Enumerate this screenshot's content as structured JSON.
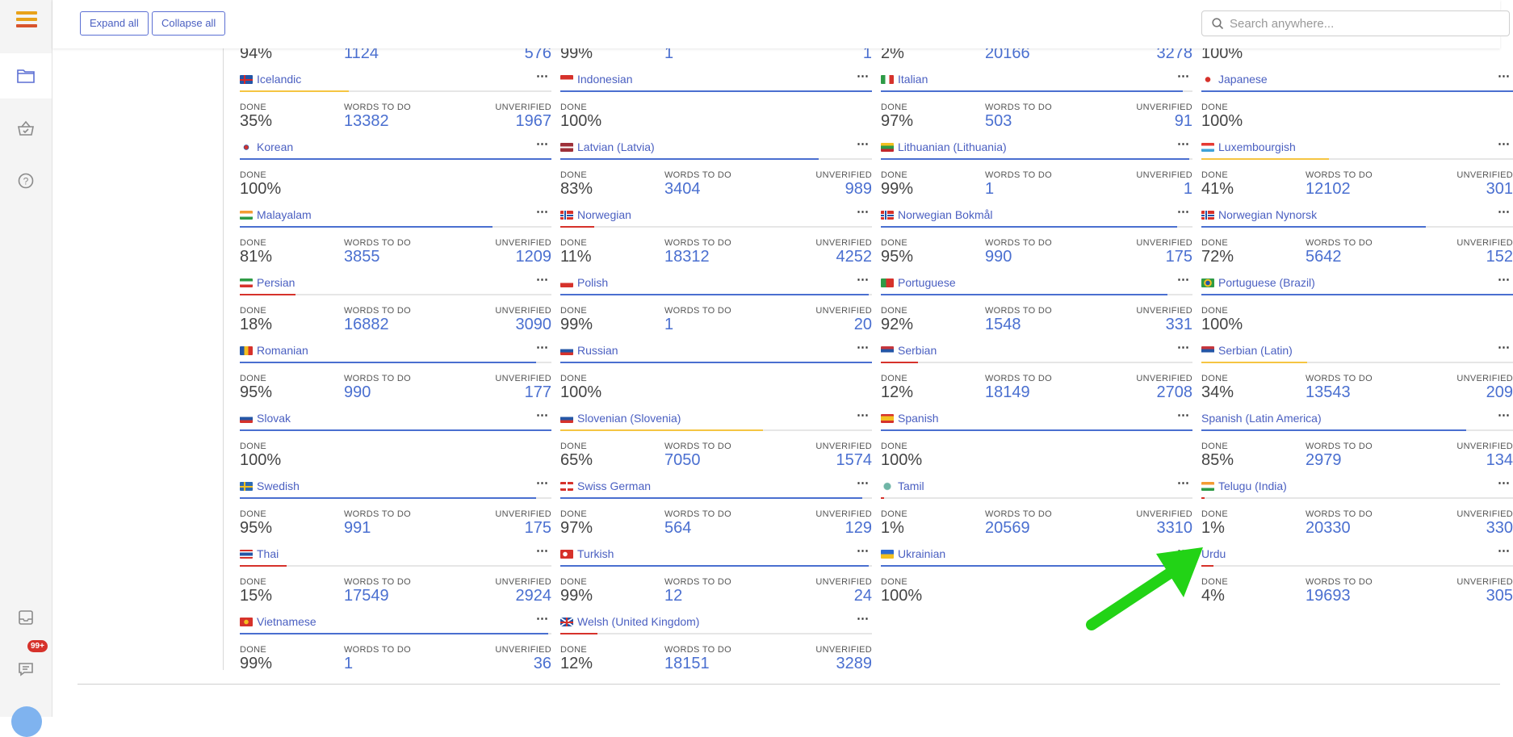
{
  "toolbar": {
    "expand_all": "Expand all",
    "collapse_all": "Collapse all"
  },
  "search": {
    "placeholder": "Search anywhere..."
  },
  "sidebar": {
    "notification_badge": "99+"
  },
  "labels": {
    "done": "DONE",
    "words_to_do": "WORDS TO DO",
    "unverified": "UNVERIFIED"
  },
  "partial_row": [
    {
      "done": "94%",
      "words": "1124",
      "unverified": "576"
    },
    {
      "done": "99%",
      "words": "1",
      "unverified": "1"
    },
    {
      "done": "2%",
      "words": "20166",
      "unverified": "3278"
    },
    {
      "done": "100%",
      "words": "",
      "unverified": ""
    }
  ],
  "languages": [
    {
      "name": "Icelandic",
      "flag": "iceland-flag",
      "done": "35%",
      "words": "13382",
      "unverified": "1967",
      "progress": 0.35,
      "bar": "#f5c542"
    },
    {
      "name": "Indonesian",
      "flag": "indonesia-flag",
      "done": "100%",
      "words": "",
      "unverified": "",
      "progress": 1.0,
      "bar": "#4a6fd0"
    },
    {
      "name": "Italian",
      "flag": "italy-flag",
      "done": "97%",
      "words": "503",
      "unverified": "91",
      "progress": 0.97,
      "bar": "#4a6fd0"
    },
    {
      "name": "Japanese",
      "flag": "japan-flag",
      "done": "100%",
      "words": "",
      "unverified": "",
      "progress": 1.0,
      "bar": "#4a6fd0"
    },
    {
      "name": "Korean",
      "flag": "korea-flag",
      "done": "100%",
      "words": "",
      "unverified": "",
      "progress": 1.0,
      "bar": "#4a6fd0"
    },
    {
      "name": "Latvian (Latvia)",
      "flag": "latvia-flag",
      "done": "83%",
      "words": "3404",
      "unverified": "989",
      "progress": 0.83,
      "bar": "#4a6fd0"
    },
    {
      "name": "Lithuanian (Lithuania)",
      "flag": "lithuania-flag",
      "done": "99%",
      "words": "1",
      "unverified": "1",
      "progress": 0.99,
      "bar": "#4a6fd0"
    },
    {
      "name": "Luxembourgish",
      "flag": "luxembourg-flag",
      "done": "41%",
      "words": "12102",
      "unverified": "301",
      "progress": 0.41,
      "bar": "#f5c542"
    },
    {
      "name": "Malayalam",
      "flag": "india-flag",
      "done": "81%",
      "words": "3855",
      "unverified": "1209",
      "progress": 0.81,
      "bar": "#4a6fd0"
    },
    {
      "name": "Norwegian",
      "flag": "norway-flag",
      "done": "11%",
      "words": "18312",
      "unverified": "4252",
      "progress": 0.11,
      "bar": "#d6322b"
    },
    {
      "name": "Norwegian Bokmål",
      "flag": "norway-flag",
      "done": "95%",
      "words": "990",
      "unverified": "175",
      "progress": 0.95,
      "bar": "#4a6fd0"
    },
    {
      "name": "Norwegian Nynorsk",
      "flag": "norway-flag",
      "done": "72%",
      "words": "5642",
      "unverified": "152",
      "progress": 0.72,
      "bar": "#4a6fd0"
    },
    {
      "name": "Persian",
      "flag": "iran-flag",
      "done": "18%",
      "words": "16882",
      "unverified": "3090",
      "progress": 0.18,
      "bar": "#d6322b"
    },
    {
      "name": "Polish",
      "flag": "poland-flag",
      "done": "99%",
      "words": "1",
      "unverified": "20",
      "progress": 0.99,
      "bar": "#4a6fd0"
    },
    {
      "name": "Portuguese",
      "flag": "portugal-flag",
      "done": "92%",
      "words": "1548",
      "unverified": "331",
      "progress": 0.92,
      "bar": "#4a6fd0"
    },
    {
      "name": "Portuguese (Brazil)",
      "flag": "brazil-flag",
      "done": "100%",
      "words": "",
      "unverified": "",
      "progress": 1.0,
      "bar": "#4a6fd0"
    },
    {
      "name": "Romanian",
      "flag": "romania-flag",
      "done": "95%",
      "words": "990",
      "unverified": "177",
      "progress": 0.95,
      "bar": "#4a6fd0"
    },
    {
      "name": "Russian",
      "flag": "russia-flag",
      "done": "100%",
      "words": "",
      "unverified": "",
      "progress": 1.0,
      "bar": "#4a6fd0"
    },
    {
      "name": "Serbian",
      "flag": "serbia-flag",
      "done": "12%",
      "words": "18149",
      "unverified": "2708",
      "progress": 0.12,
      "bar": "#d6322b"
    },
    {
      "name": "Serbian (Latin)",
      "flag": "serbia-flag",
      "done": "34%",
      "words": "13543",
      "unverified": "209",
      "progress": 0.34,
      "bar": "#f5c542"
    },
    {
      "name": "Slovak",
      "flag": "slovakia-flag",
      "done": "100%",
      "words": "",
      "unverified": "",
      "progress": 1.0,
      "bar": "#4a6fd0"
    },
    {
      "name": "Slovenian (Slovenia)",
      "flag": "slovenia-flag",
      "done": "65%",
      "words": "7050",
      "unverified": "1574",
      "progress": 0.65,
      "bar": "#f5c542"
    },
    {
      "name": "Spanish",
      "flag": "spain-flag",
      "done": "100%",
      "words": "",
      "unverified": "",
      "progress": 1.0,
      "bar": "#4a6fd0"
    },
    {
      "name": "Spanish (Latin America)",
      "flag": "",
      "done": "85%",
      "words": "2979",
      "unverified": "134",
      "progress": 0.85,
      "bar": "#4a6fd0"
    },
    {
      "name": "Swedish",
      "flag": "sweden-flag",
      "done": "95%",
      "words": "991",
      "unverified": "175",
      "progress": 0.95,
      "bar": "#4a6fd0"
    },
    {
      "name": "Swiss German",
      "flag": "switzerland-flag",
      "done": "97%",
      "words": "564",
      "unverified": "129",
      "progress": 0.97,
      "bar": "#4a6fd0"
    },
    {
      "name": "Tamil",
      "flag": "globe-flag",
      "done": "1%",
      "words": "20569",
      "unverified": "3310",
      "progress": 0.01,
      "bar": "#d6322b"
    },
    {
      "name": "Telugu (India)",
      "flag": "india-flag",
      "done": "1%",
      "words": "20330",
      "unverified": "330",
      "progress": 0.01,
      "bar": "#d6322b"
    },
    {
      "name": "Thai",
      "flag": "thailand-flag",
      "done": "15%",
      "words": "17549",
      "unverified": "2924",
      "progress": 0.15,
      "bar": "#d6322b"
    },
    {
      "name": "Turkish",
      "flag": "turkey-flag",
      "done": "99%",
      "words": "12",
      "unverified": "24",
      "progress": 0.99,
      "bar": "#4a6fd0"
    },
    {
      "name": "Ukrainian",
      "flag": "ukraine-flag",
      "done": "100%",
      "words": "",
      "unverified": "",
      "progress": 1.0,
      "bar": "#4a6fd0"
    },
    {
      "name": "Urdu",
      "flag": "",
      "done": "4%",
      "words": "19693",
      "unverified": "305",
      "progress": 0.04,
      "bar": "#d6322b"
    },
    {
      "name": "Vietnamese",
      "flag": "vietnam-flag",
      "done": "99%",
      "words": "1",
      "unverified": "36",
      "progress": 0.99,
      "bar": "#4a6fd0"
    },
    {
      "name": "Welsh (United Kingdom)",
      "flag": "uk-flag",
      "done": "12%",
      "words": "18151",
      "unverified": "3289",
      "progress": 0.12,
      "bar": "#d6322b"
    }
  ],
  "colors": {
    "accent": "#4a6fd0",
    "warning": "#f5c542",
    "danger": "#d6322b",
    "annotation_arrow": "#22d316"
  }
}
